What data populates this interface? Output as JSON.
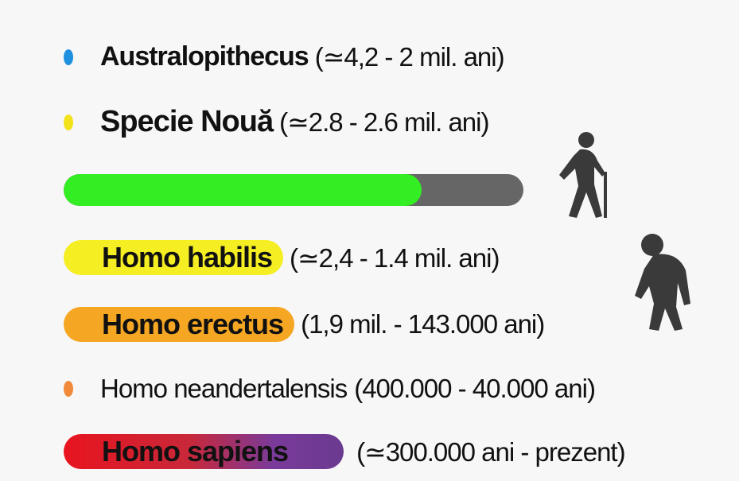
{
  "items": [
    {
      "name": "Australopithecus",
      "range": "(≃4,2 - 2 mil. ani)"
    },
    {
      "name": "Specie Nouă",
      "range": "(≃2.8 - 2.6 mil. ani)"
    },
    {
      "name": "Homo habilis",
      "range": "(≃2,4 - 1.4 mil. ani)"
    },
    {
      "name": "Homo erectus",
      "range": "(1,9 mil. - 143.000 ani)"
    },
    {
      "name": "Homo neandertalensis",
      "range": "(400.000 - 40.000 ani)"
    },
    {
      "name": "Homo sapiens",
      "range": "(≃300.000 ani - prezent)"
    }
  ]
}
